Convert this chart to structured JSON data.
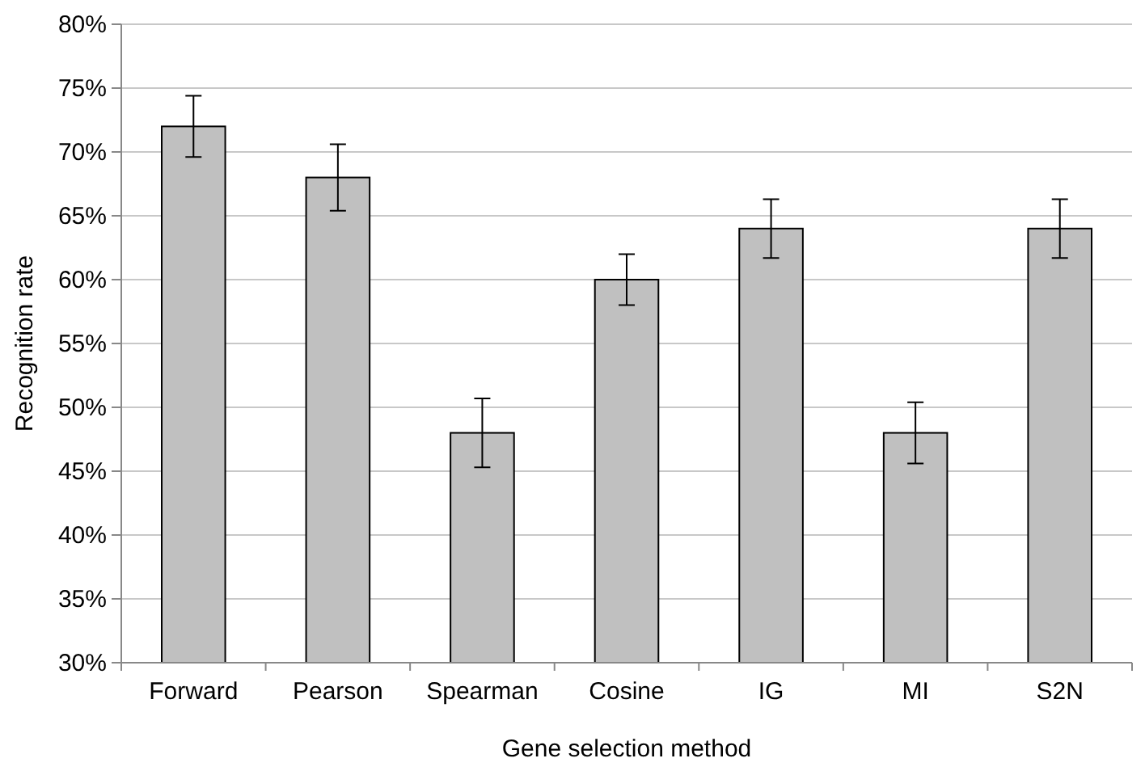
{
  "chart_data": {
    "type": "bar",
    "xlabel": "Gene selection method",
    "ylabel": "Recognition rate",
    "categories": [
      "Forward",
      "Pearson",
      "Spearman",
      "Cosine",
      "IG",
      "MI",
      "S2N"
    ],
    "values": [
      72,
      68,
      48,
      60,
      64,
      48,
      64
    ],
    "errors": [
      2.4,
      2.6,
      2.7,
      2,
      2.3,
      2.4,
      2.3
    ],
    "color": "#c0c0c0",
    "ylim": [
      30,
      80
    ],
    "yticks": [
      {
        "value": 30,
        "label": "30%"
      },
      {
        "value": 35,
        "label": "35%"
      },
      {
        "value": 40,
        "label": "40%"
      },
      {
        "value": 45,
        "label": "45%"
      },
      {
        "value": 50,
        "label": "50%"
      },
      {
        "value": 55,
        "label": "55%"
      },
      {
        "value": 60,
        "label": "60%"
      },
      {
        "value": 65,
        "label": "65%"
      },
      {
        "value": 70,
        "label": "70%"
      },
      {
        "value": 75,
        "label": "75%"
      },
      {
        "value": 80,
        "label": "80%"
      }
    ],
    "grid": "y"
  }
}
